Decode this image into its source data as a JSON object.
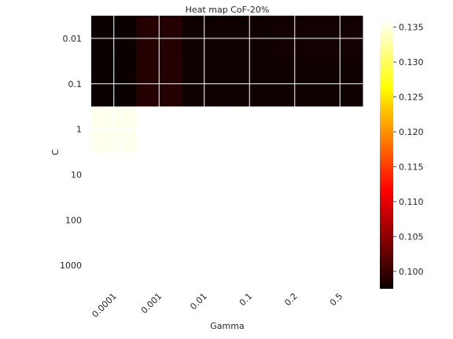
{
  "chart_data": {
    "type": "heatmap",
    "title": "Heat map CoF-20%",
    "xlabel": "Gamma",
    "ylabel": "C",
    "x_categories": [
      "0.0001",
      "0.001",
      "0.01",
      "0.1",
      "0.2",
      "0.5"
    ],
    "y_categories": [
      "0.01",
      "0.1",
      "1",
      "10",
      "100",
      "1000"
    ],
    "values": [
      [
        0.0975,
        0.099,
        0.0978,
        0.0978,
        0.098,
        0.098
      ],
      [
        0.0975,
        0.099,
        0.0978,
        0.0978,
        0.0978,
        0.0978
      ],
      [
        0.1355,
        0.1362,
        0.1362,
        0.1362,
        0.1362,
        0.1362
      ],
      [
        null,
        0.1362,
        0.1362,
        0.1362,
        0.1362,
        0.1362
      ],
      [
        null,
        0.1362,
        0.1362,
        0.1362,
        0.1362,
        0.1362
      ],
      [
        null,
        0.1362,
        0.1362,
        0.1362,
        0.1362,
        0.1362
      ]
    ],
    "colormap": "hot",
    "vmin": 0.0975,
    "vmax": 0.1362,
    "colorbar_ticks": [
      "0.100",
      "0.105",
      "0.110",
      "0.115",
      "0.120",
      "0.125",
      "0.130",
      "0.135"
    ],
    "grid": true
  }
}
